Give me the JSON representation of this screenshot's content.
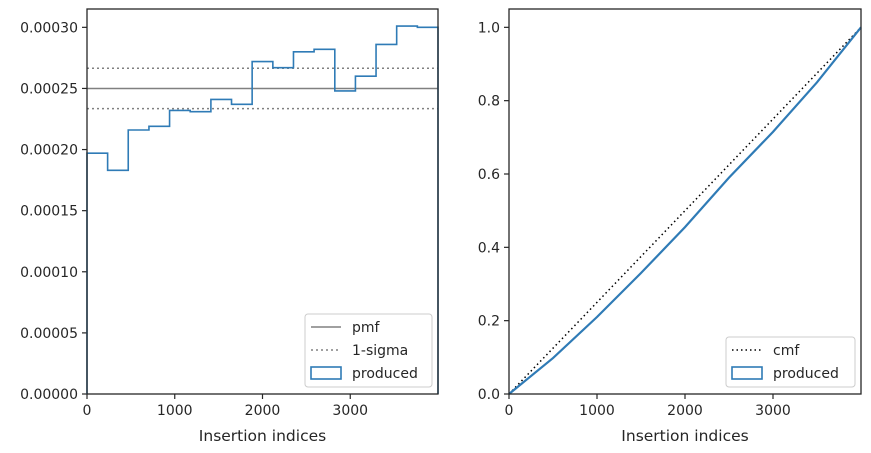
{
  "chart_data": [
    {
      "type": "histogram-step",
      "xlabel": "Insertion indices",
      "ylabel": "",
      "xlim": [
        0,
        4000
      ],
      "ylim": [
        0,
        0.000315
      ],
      "xticks": [
        0,
        1000,
        2000,
        3000
      ],
      "xtick_labels": [
        "0",
        "1000",
        "2000",
        "3000"
      ],
      "yticks": [
        0,
        5e-05,
        0.0001,
        0.00015,
        0.0002,
        0.00025,
        0.0003
      ],
      "ytick_labels": [
        "0.00000",
        "0.00005",
        "0.00010",
        "0.00015",
        "0.00020",
        "0.00025",
        "0.00030"
      ],
      "grid": false,
      "legend_placement": "lower right",
      "legend": [
        {
          "label": "pmf",
          "style": "solid"
        },
        {
          "label": "1-sigma",
          "style": "dotted"
        },
        {
          "label": "produced",
          "style": "patch"
        }
      ],
      "bin_edges": [
        0,
        235,
        470,
        706,
        941,
        1176,
        1412,
        1647,
        1882,
        2118,
        2353,
        2588,
        2824,
        3059,
        3294,
        3529,
        3765,
        4000
      ],
      "values": [
        0.000197,
        0.000183,
        0.000216,
        0.000219,
        0.000232,
        0.000231,
        0.000241,
        0.000237,
        0.000272,
        0.000267,
        0.00028,
        0.000282,
        0.000248,
        0.00026,
        0.000286,
        0.000301,
        0.0003
      ],
      "pmf": 0.00025,
      "sigma_band": [
        0.0002335,
        0.0002665
      ],
      "colors": {
        "produced": "#2f7bb6",
        "pmf": "#808080",
        "sigma": "#808080"
      }
    },
    {
      "type": "line",
      "xlabel": "Insertion indices",
      "ylabel": "",
      "xlim": [
        0,
        4000
      ],
      "ylim": [
        0,
        1.05
      ],
      "xticks": [
        0,
        1000,
        2000,
        3000
      ],
      "xtick_labels": [
        "0",
        "1000",
        "2000",
        "3000"
      ],
      "yticks": [
        0,
        0.2,
        0.4,
        0.6,
        0.8,
        1.0
      ],
      "ytick_labels": [
        "0.0",
        "0.2",
        "0.4",
        "0.6",
        "0.8",
        "1.0"
      ],
      "grid": false,
      "legend_placement": "lower right",
      "legend": [
        {
          "label": "cmf",
          "style": "dotted"
        },
        {
          "label": "produced",
          "style": "patch"
        }
      ],
      "series": [
        {
          "name": "cmf",
          "x": [
            0,
            4000
          ],
          "y": [
            0,
            1.0
          ],
          "color": "#000000",
          "style": "dotted"
        },
        {
          "name": "produced",
          "x": [
            0,
            500,
            1000,
            1500,
            2000,
            2500,
            3000,
            3500,
            4000
          ],
          "y": [
            0,
            0.098,
            0.21,
            0.33,
            0.455,
            0.59,
            0.715,
            0.85,
            1.0
          ],
          "color": "#2f7bb6",
          "style": "solid"
        }
      ]
    }
  ]
}
